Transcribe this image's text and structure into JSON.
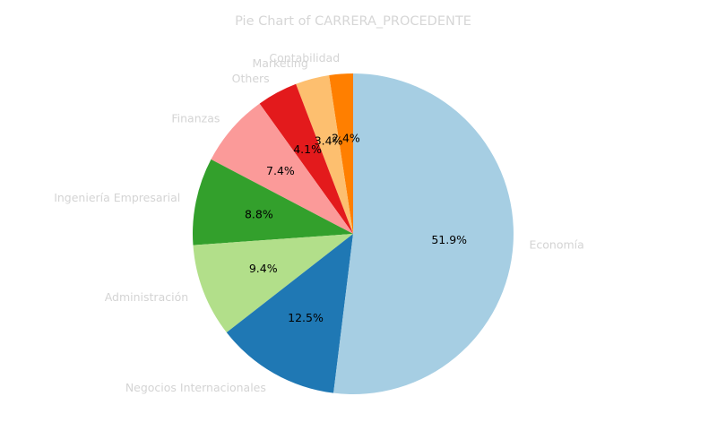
{
  "chart_data": {
    "type": "pie",
    "title": "Pie Chart of CARRERA_PROCEDENTE",
    "start_angle": 90,
    "direction": "counterclockwise",
    "slices": [
      {
        "label": "Contabilidad",
        "value": 2.4,
        "pct_text": "2.4%",
        "color": "#ff7f00"
      },
      {
        "label": "Marketing",
        "value": 3.4,
        "pct_text": "3.4%",
        "color": "#fdbf6f"
      },
      {
        "label": "Others",
        "value": 4.1,
        "pct_text": "4.1%",
        "color": "#e31a1c"
      },
      {
        "label": "Finanzas",
        "value": 7.4,
        "pct_text": "7.4%",
        "color": "#fb9a99"
      },
      {
        "label": "Ingeniería Empresarial",
        "value": 8.8,
        "pct_text": "8.8%",
        "color": "#33a02c"
      },
      {
        "label": "Administración",
        "value": 9.4,
        "pct_text": "9.4%",
        "color": "#b2df8a"
      },
      {
        "label": "Negocios Internacionales",
        "value": 12.5,
        "pct_text": "12.5%",
        "color": "#1f78b4"
      },
      {
        "label": "Economía",
        "value": 51.9,
        "pct_text": "51.9%",
        "color": "#a6cee3"
      }
    ]
  }
}
